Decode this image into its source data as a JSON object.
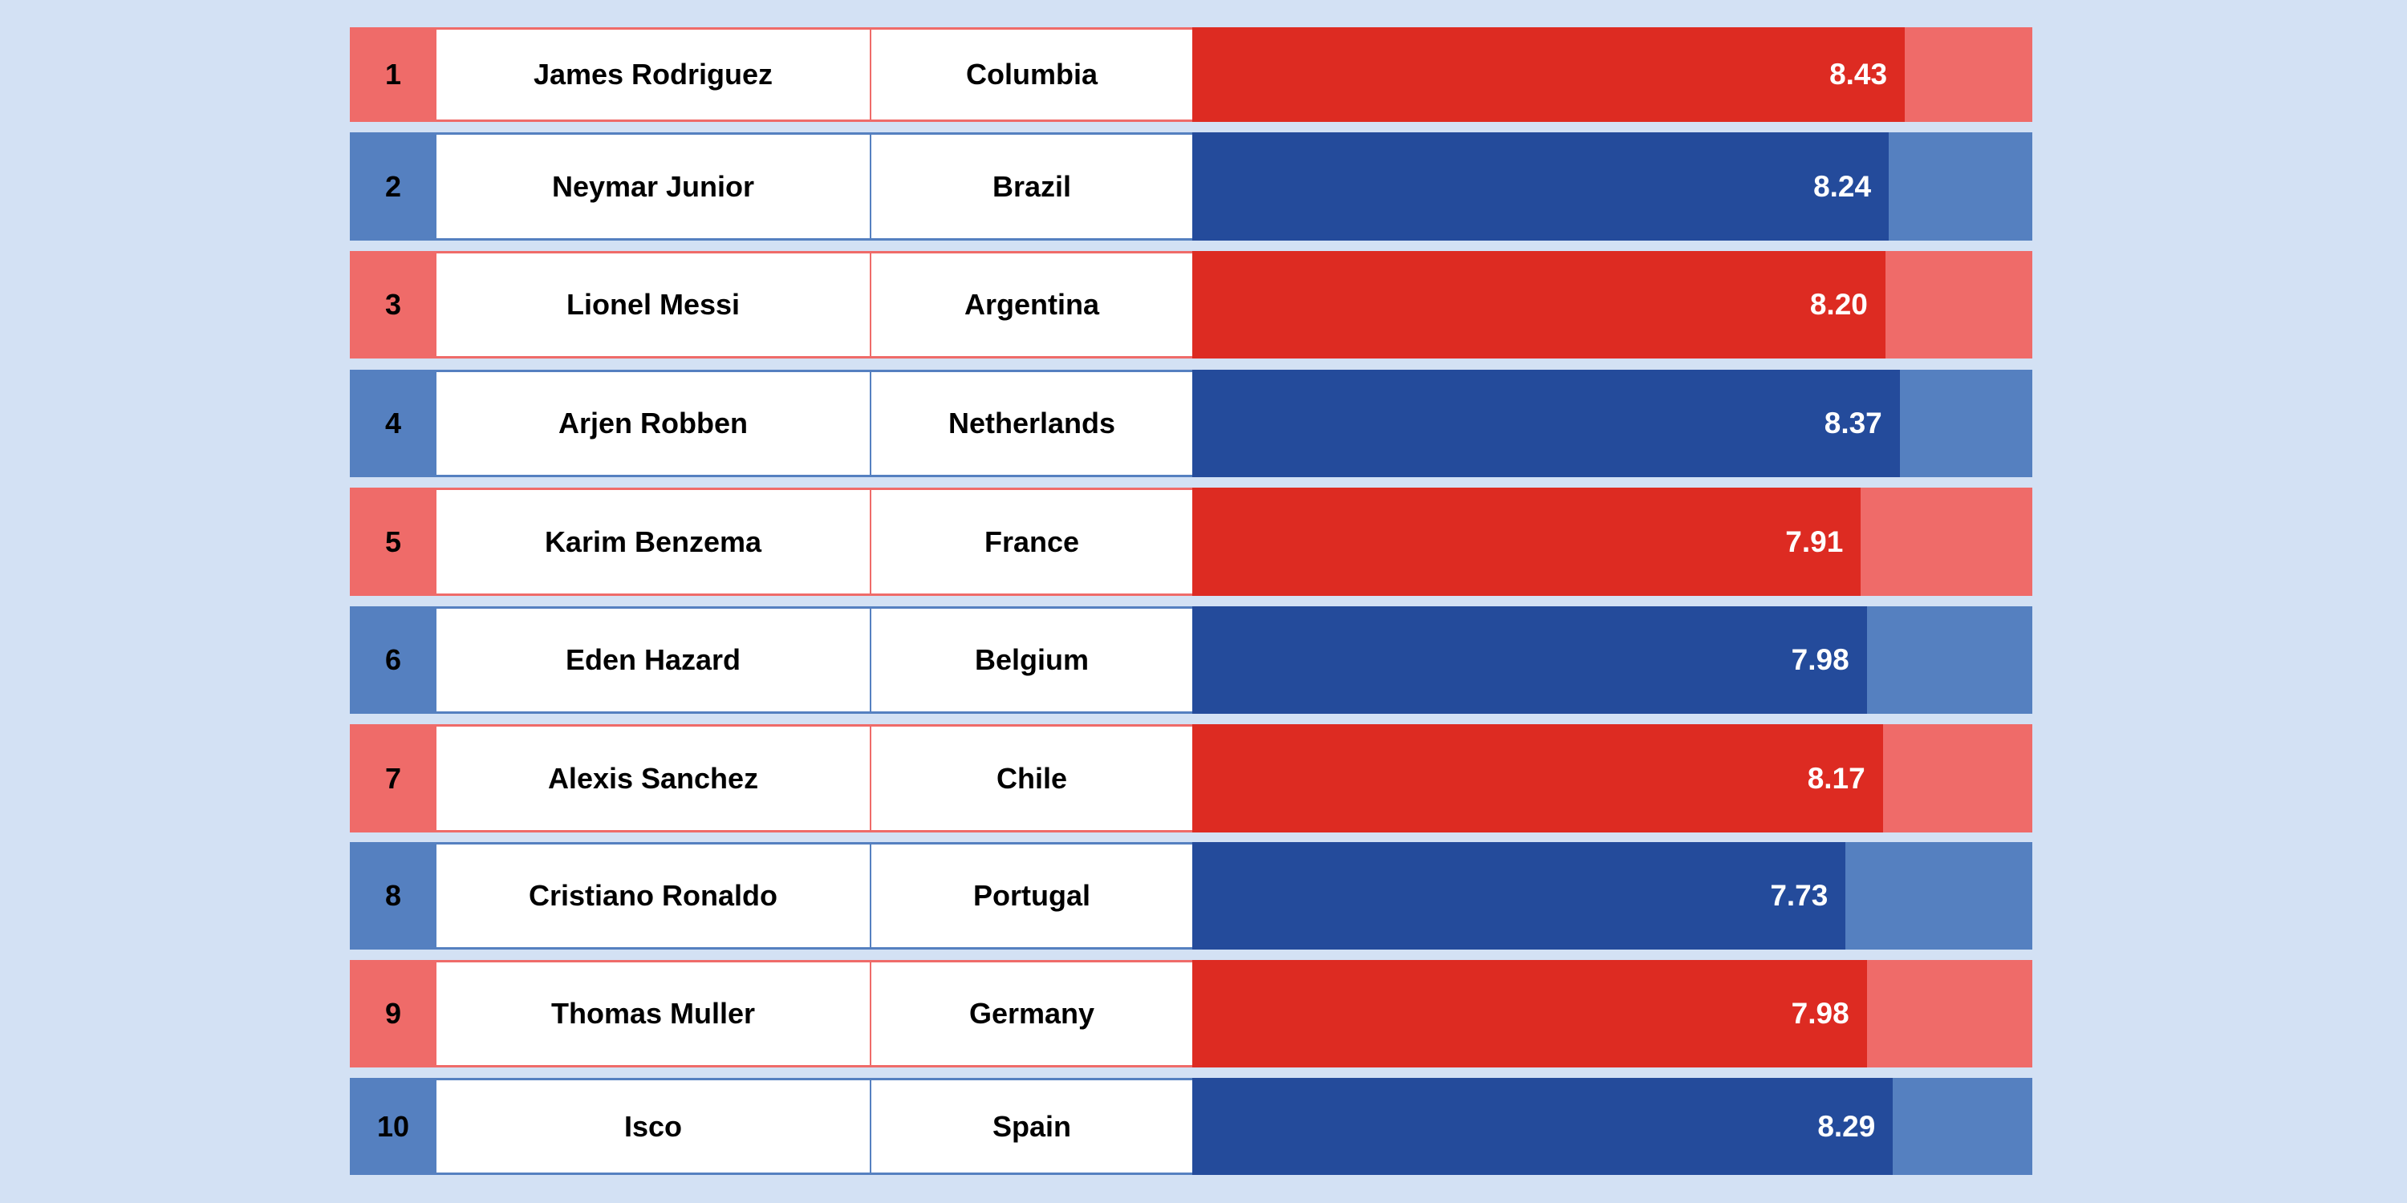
{
  "colors": {
    "background": "#d3e1f4",
    "red_light": "#ef6b69",
    "red_dark": "#dd2b22",
    "blue_light": "#5580c0",
    "blue_dark": "#244b9b"
  },
  "chart_data": {
    "type": "bar",
    "orientation": "horizontal",
    "xlim": [
      0,
      10
    ],
    "grid": false,
    "rows": [
      {
        "rank": "1",
        "player": "James Rodriguez",
        "country": "Columbia",
        "value": 8.43,
        "label": "8.43",
        "theme": "red"
      },
      {
        "rank": "2",
        "player": "Neymar Junior",
        "country": "Brazil",
        "value": 8.24,
        "label": "8.24",
        "theme": "blue"
      },
      {
        "rank": "3",
        "player": "Lionel Messi",
        "country": "Argentina",
        "value": 8.2,
        "label": "8.20",
        "theme": "red"
      },
      {
        "rank": "4",
        "player": "Arjen Robben",
        "country": "Netherlands",
        "value": 8.37,
        "label": "8.37",
        "theme": "blue"
      },
      {
        "rank": "5",
        "player": "Karim Benzema",
        "country": "France",
        "value": 7.91,
        "label": "7.91",
        "theme": "red"
      },
      {
        "rank": "6",
        "player": "Eden Hazard",
        "country": "Belgium",
        "value": 7.98,
        "label": "7.98",
        "theme": "blue"
      },
      {
        "rank": "7",
        "player": "Alexis Sanchez",
        "country": "Chile",
        "value": 8.17,
        "label": "8.17",
        "theme": "red"
      },
      {
        "rank": "8",
        "player": "Cristiano Ronaldo",
        "country": "Portugal",
        "value": 7.73,
        "label": "7.73",
        "theme": "blue"
      },
      {
        "rank": "9",
        "player": "Thomas Muller",
        "country": "Germany",
        "value": 7.98,
        "label": "7.98",
        "theme": "red"
      },
      {
        "rank": "10",
        "player": "Isco",
        "country": "Spain",
        "value": 8.29,
        "label": "8.29",
        "theme": "blue"
      }
    ]
  }
}
